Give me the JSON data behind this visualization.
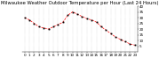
{
  "title": "Milwaukee Weather Outdoor Temperature per Hour (Last 24 Hours)",
  "hours": [
    0,
    1,
    2,
    3,
    4,
    5,
    6,
    7,
    8,
    9,
    10,
    11,
    12,
    13,
    14,
    15,
    16,
    17,
    18,
    19,
    20,
    21,
    22,
    23
  ],
  "temps": [
    30,
    28,
    25,
    22,
    21,
    20,
    22,
    24,
    26,
    32,
    35,
    33,
    31,
    29,
    28,
    26,
    22,
    19,
    16,
    13,
    11,
    9,
    7,
    6
  ],
  "line_color": "#ff0000",
  "marker_color": "#000000",
  "bg_color": "#ffffff",
  "ylim_min": 0,
  "ylim_max": 40,
  "ytick_values": [
    5,
    10,
    15,
    20,
    25,
    30,
    35,
    40
  ],
  "grid_color": "#888888",
  "title_fontsize": 3.8,
  "tick_fontsize": 3.0,
  "marker_size": 1.0,
  "line_width": 0.5
}
